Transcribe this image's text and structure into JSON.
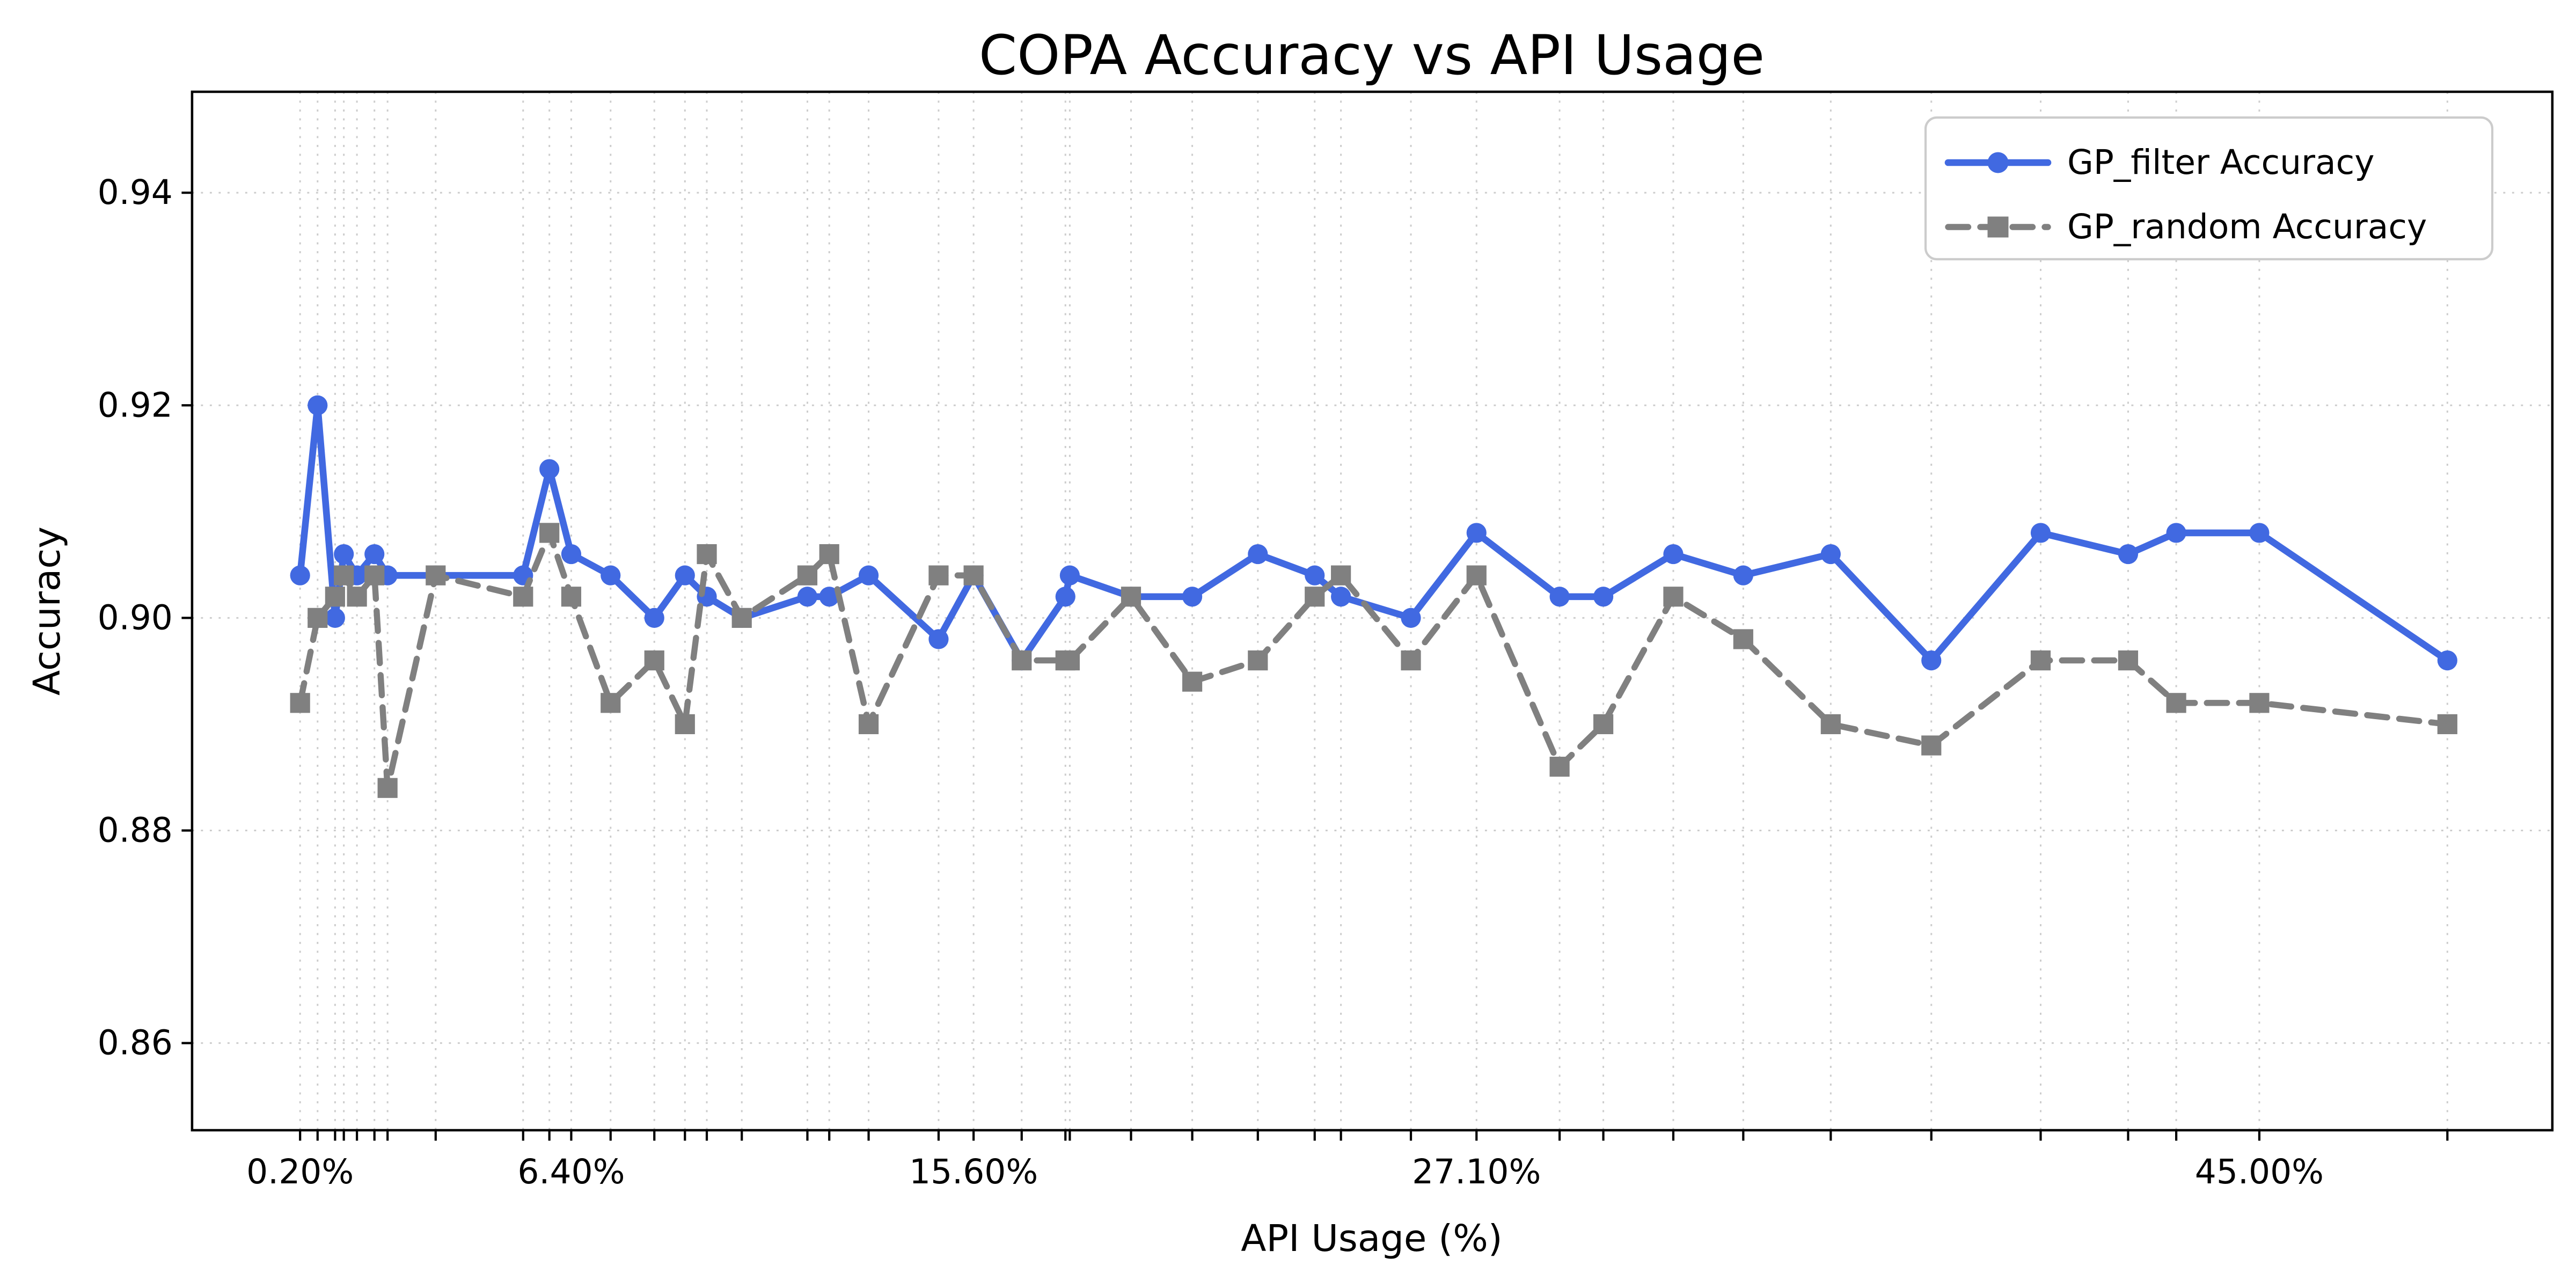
{
  "figure": {
    "title": "COPA Accuracy vs API Usage",
    "background_color": "#ffffff"
  },
  "axes": {
    "xlabel": "API Usage (%)",
    "ylabel": "Accuracy",
    "xlim": [
      -2.27,
      51.7
    ],
    "ylim": [
      0.8518,
      0.9495
    ],
    "grid": "dotted",
    "grid_color": "#cccccc",
    "spine_color": "#000000",
    "xticks_labeled": [
      {
        "value": 0.2,
        "label": "0.20%"
      },
      {
        "value": 6.4,
        "label": "6.40%"
      },
      {
        "value": 15.6,
        "label": "15.60%"
      },
      {
        "value": 27.1,
        "label": "27.10%"
      },
      {
        "value": 45.0,
        "label": "45.00%"
      }
    ],
    "yticks": [
      {
        "value": 0.86,
        "label": "0.86"
      },
      {
        "value": 0.88,
        "label": "0.88"
      },
      {
        "value": 0.9,
        "label": "0.90"
      },
      {
        "value": 0.92,
        "label": "0.92"
      },
      {
        "value": 0.94,
        "label": "0.94"
      }
    ]
  },
  "legend": {
    "position": "upper right",
    "border_color": "#cccccc"
  },
  "chart_data": {
    "type": "line",
    "title": "COPA Accuracy vs API Usage",
    "xlabel": "API Usage (%)",
    "ylabel": "Accuracy",
    "xlim": [
      -2.27,
      51.7
    ],
    "ylim": [
      0.8518,
      0.9495
    ],
    "legend_position": "upper right",
    "grid": true,
    "x": [
      0.2,
      0.6,
      1.0,
      1.2,
      1.5,
      1.9,
      2.2,
      3.3,
      5.3,
      5.9,
      6.4,
      7.3,
      8.3,
      9.0,
      9.5,
      10.3,
      11.8,
      12.3,
      13.2,
      14.8,
      15.6,
      16.7,
      17.7,
      17.8,
      19.2,
      20.6,
      22.1,
      23.4,
      24.0,
      25.6,
      27.1,
      29.0,
      30.0,
      31.6,
      33.2,
      35.2,
      37.5,
      40.0,
      42.0,
      43.1,
      45.0,
      49.3
    ],
    "series": [
      {
        "name": "GP_filter Accuracy",
        "color": "#4169e1",
        "linestyle": "solid",
        "linewidth": 4.2,
        "marker": "circle",
        "values": [
          0.904,
          0.92,
          0.9,
          0.906,
          0.904,
          0.906,
          0.904,
          0.904,
          0.904,
          0.914,
          0.906,
          0.904,
          0.9,
          0.904,
          0.902,
          0.9,
          0.902,
          0.902,
          0.904,
          0.898,
          0.904,
          0.896,
          0.902,
          0.904,
          0.902,
          0.902,
          0.906,
          0.904,
          0.902,
          0.9,
          0.908,
          0.902,
          0.902,
          0.906,
          0.904,
          0.906,
          0.896,
          0.908,
          0.906,
          0.908,
          0.908,
          0.896
        ]
      },
      {
        "name": "GP_random Accuracy",
        "color": "#808080",
        "linestyle": "dashed",
        "linewidth": 3.8,
        "marker": "square",
        "values": [
          0.892,
          0.9,
          0.902,
          0.904,
          0.902,
          0.904,
          0.884,
          0.904,
          0.902,
          0.908,
          0.902,
          0.892,
          0.896,
          0.89,
          0.906,
          0.9,
          0.904,
          0.906,
          0.89,
          0.904,
          0.904,
          0.896,
          0.896,
          0.896,
          0.902,
          0.894,
          0.896,
          0.902,
          0.904,
          0.896,
          0.904,
          0.886,
          0.89,
          0.902,
          0.898,
          0.89,
          0.888,
          0.896,
          0.896,
          0.892,
          0.892,
          0.89
        ]
      }
    ]
  }
}
